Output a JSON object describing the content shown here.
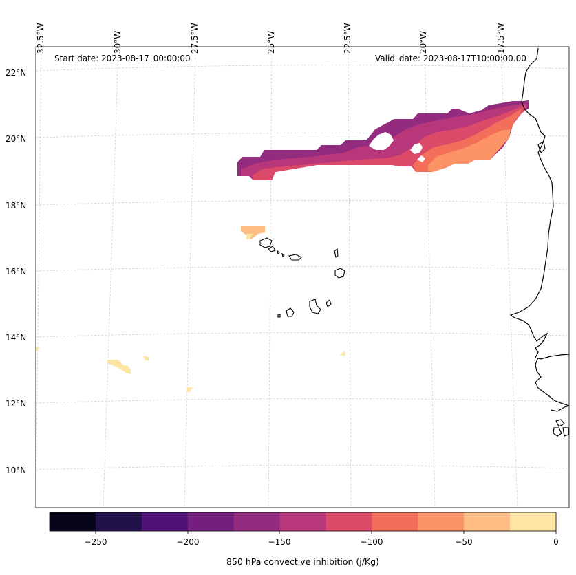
{
  "header": {
    "start_date": "Start date: 2023-08-17_00:00:00",
    "valid_date": "Valid_date: 2023-08-17T10:00:00.00"
  },
  "lon_ticks": [
    "32.5°W",
    "30°W",
    "27.5°W",
    "25°W",
    "22.5°W",
    "20°W",
    "17.5°W"
  ],
  "lat_ticks": [
    "22°N",
    "20°N",
    "18°N",
    "16°N",
    "14°N",
    "12°N",
    "10°N"
  ],
  "colorbar": {
    "title": "850 hPa convective inhibition (j/Kg)",
    "tick_labels": [
      "−250",
      "−200",
      "−150",
      "−100",
      "−50",
      "0"
    ],
    "range": [
      -275,
      0
    ],
    "colors": [
      "#07051a",
      "#22124b",
      "#4f1278",
      "#741e7e",
      "#932b7e",
      "#b8377a",
      "#dc4a6a",
      "#f36f5a",
      "#fd9468",
      "#fdbd84",
      "#fde6a3"
    ]
  }
}
